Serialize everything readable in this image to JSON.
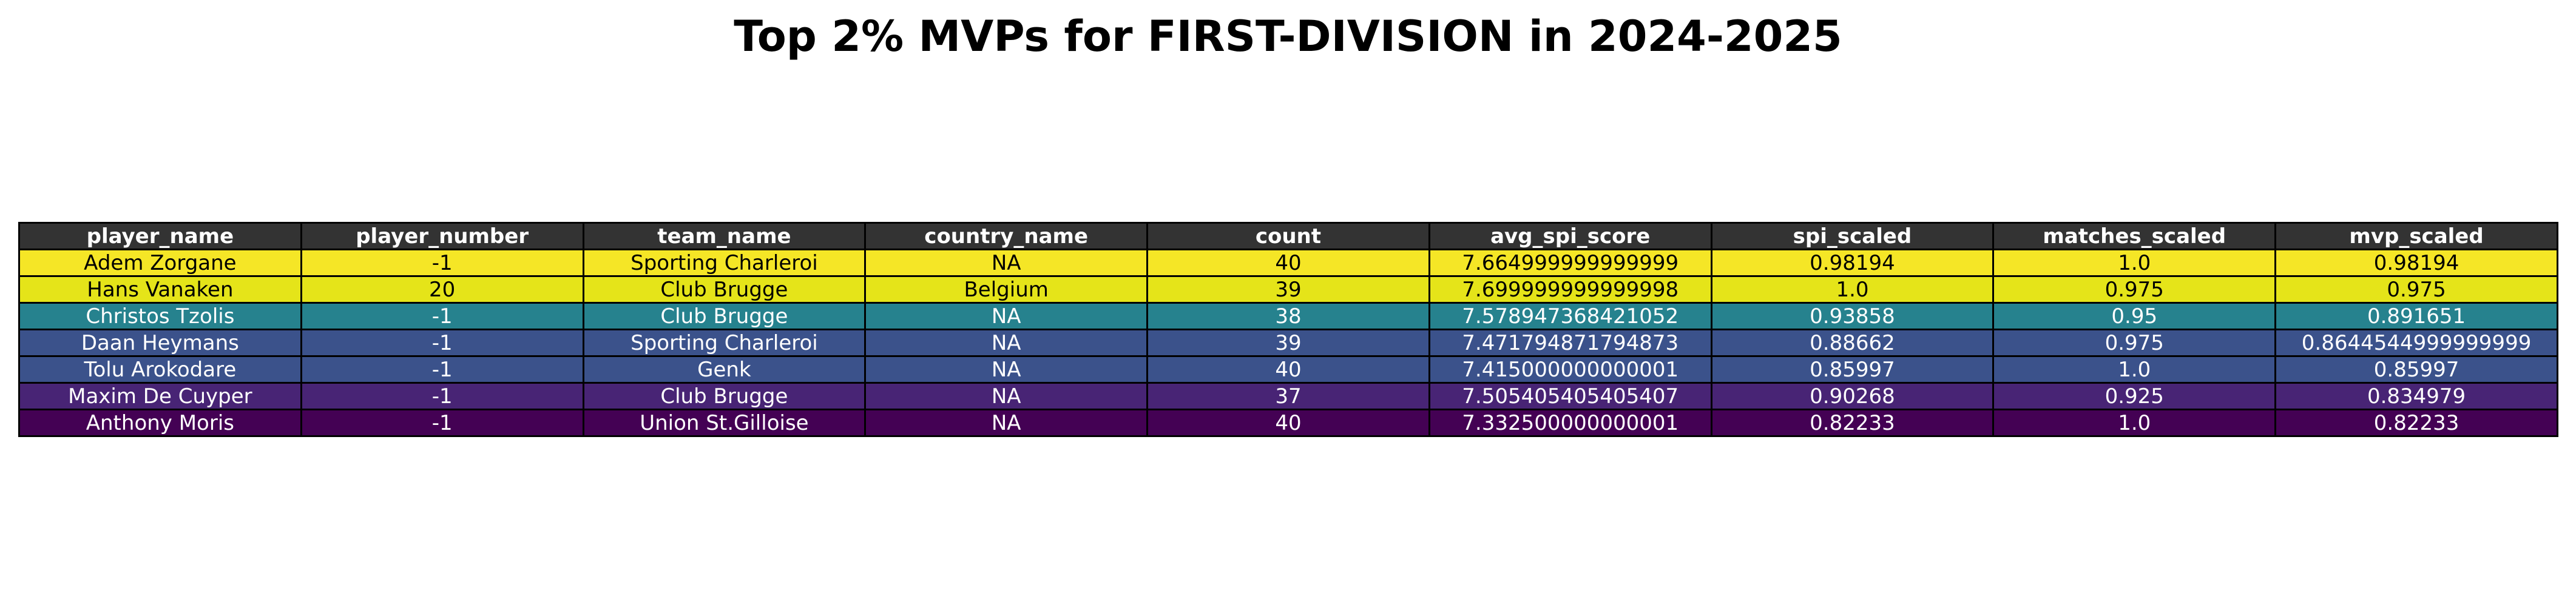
{
  "chart_data": {
    "type": "table",
    "title": "Top 2% MVPs for FIRST-DIVISION in 2024-2025",
    "columns": [
      "player_name",
      "player_number",
      "team_name",
      "country_name",
      "count",
      "avg_spi_score",
      "spi_scaled",
      "matches_scaled",
      "mvp_scaled"
    ],
    "rows": [
      {
        "cells": [
          "Adem Zorgane",
          "-1",
          "Sporting Charleroi",
          "NA",
          "40",
          "7.664999999999999",
          "0.98194",
          "1.0",
          "0.98194"
        ],
        "bg": "#f5e626",
        "fg": "#000000"
      },
      {
        "cells": [
          "Hans Vanaken",
          "20",
          "Club Brugge",
          "Belgium",
          "39",
          "7.699999999999998",
          "1.0",
          "0.975",
          "0.975"
        ],
        "bg": "#e5e419",
        "fg": "#000000"
      },
      {
        "cells": [
          "Christos Tzolis",
          "-1",
          "Club Brugge",
          "NA",
          "38",
          "7.578947368421052",
          "0.93858",
          "0.95",
          "0.891651"
        ],
        "bg": "#26828e",
        "fg": "#ffffff"
      },
      {
        "cells": [
          "Daan Heymans",
          "-1",
          "Sporting Charleroi",
          "NA",
          "39",
          "7.471794871794873",
          "0.88662",
          "0.975",
          "0.8644544999999999"
        ],
        "bg": "#3b528b",
        "fg": "#ffffff"
      },
      {
        "cells": [
          "Tolu Arokodare",
          "-1",
          "Genk",
          "NA",
          "40",
          "7.415000000000001",
          "0.85997",
          "1.0",
          "0.85997"
        ],
        "bg": "#3b528b",
        "fg": "#ffffff"
      },
      {
        "cells": [
          "Maxim De Cuyper",
          "-1",
          "Club Brugge",
          "NA",
          "37",
          "7.505405405405407",
          "0.90268",
          "0.925",
          "0.834979"
        ],
        "bg": "#482475",
        "fg": "#ffffff"
      },
      {
        "cells": [
          "Anthony Moris",
          "-1",
          "Union St.Gilloise",
          "NA",
          "40",
          "7.332500000000001",
          "0.82233",
          "1.0",
          "0.82233"
        ],
        "bg": "#440154",
        "fg": "#ffffff"
      }
    ]
  }
}
